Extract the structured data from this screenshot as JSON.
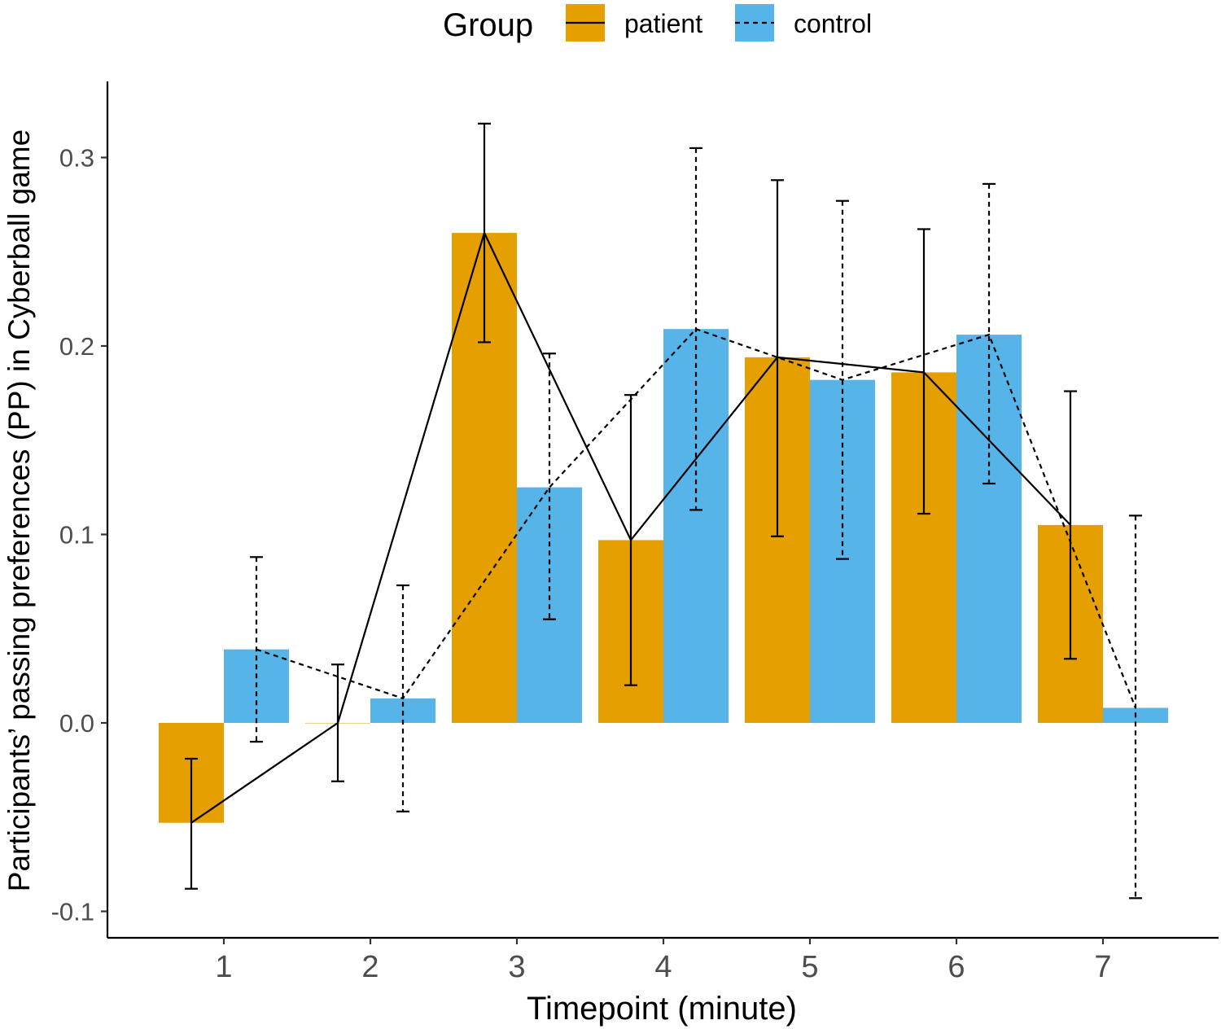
{
  "chart_data": {
    "type": "bar",
    "xlabel": "Timepoint (minute)",
    "ylabel": "Participants’ passing preferences (PP) in Cyberball game",
    "categories": [
      "1",
      "2",
      "3",
      "4",
      "5",
      "6",
      "7"
    ],
    "yticks": [
      "-0.1",
      "0.0",
      "0.1",
      "0.2",
      "0.3"
    ],
    "ylim": [
      -0.114,
      0.338
    ],
    "grid": false,
    "legend": {
      "title": "Group",
      "position": "top",
      "entries": [
        "patient",
        "control"
      ]
    },
    "series": [
      {
        "name": "patient",
        "color": "#E69F00",
        "line_style": "solid",
        "values": [
          -0.053,
          0.0,
          0.26,
          0.097,
          0.194,
          0.186,
          0.105
        ],
        "error_low": [
          -0.088,
          -0.031,
          0.202,
          0.02,
          0.099,
          0.111,
          0.034
        ],
        "error_high": [
          -0.019,
          0.031,
          0.318,
          0.174,
          0.288,
          0.262,
          0.176
        ]
      },
      {
        "name": "control",
        "color": "#56B4E9",
        "line_style": "dashed",
        "values": [
          0.039,
          0.013,
          0.125,
          0.209,
          0.182,
          0.206,
          0.008
        ],
        "error_low": [
          -0.01,
          -0.047,
          0.055,
          0.113,
          0.087,
          0.127,
          -0.093
        ],
        "error_high": [
          0.088,
          0.073,
          0.196,
          0.305,
          0.277,
          0.286,
          0.11
        ]
      }
    ]
  }
}
